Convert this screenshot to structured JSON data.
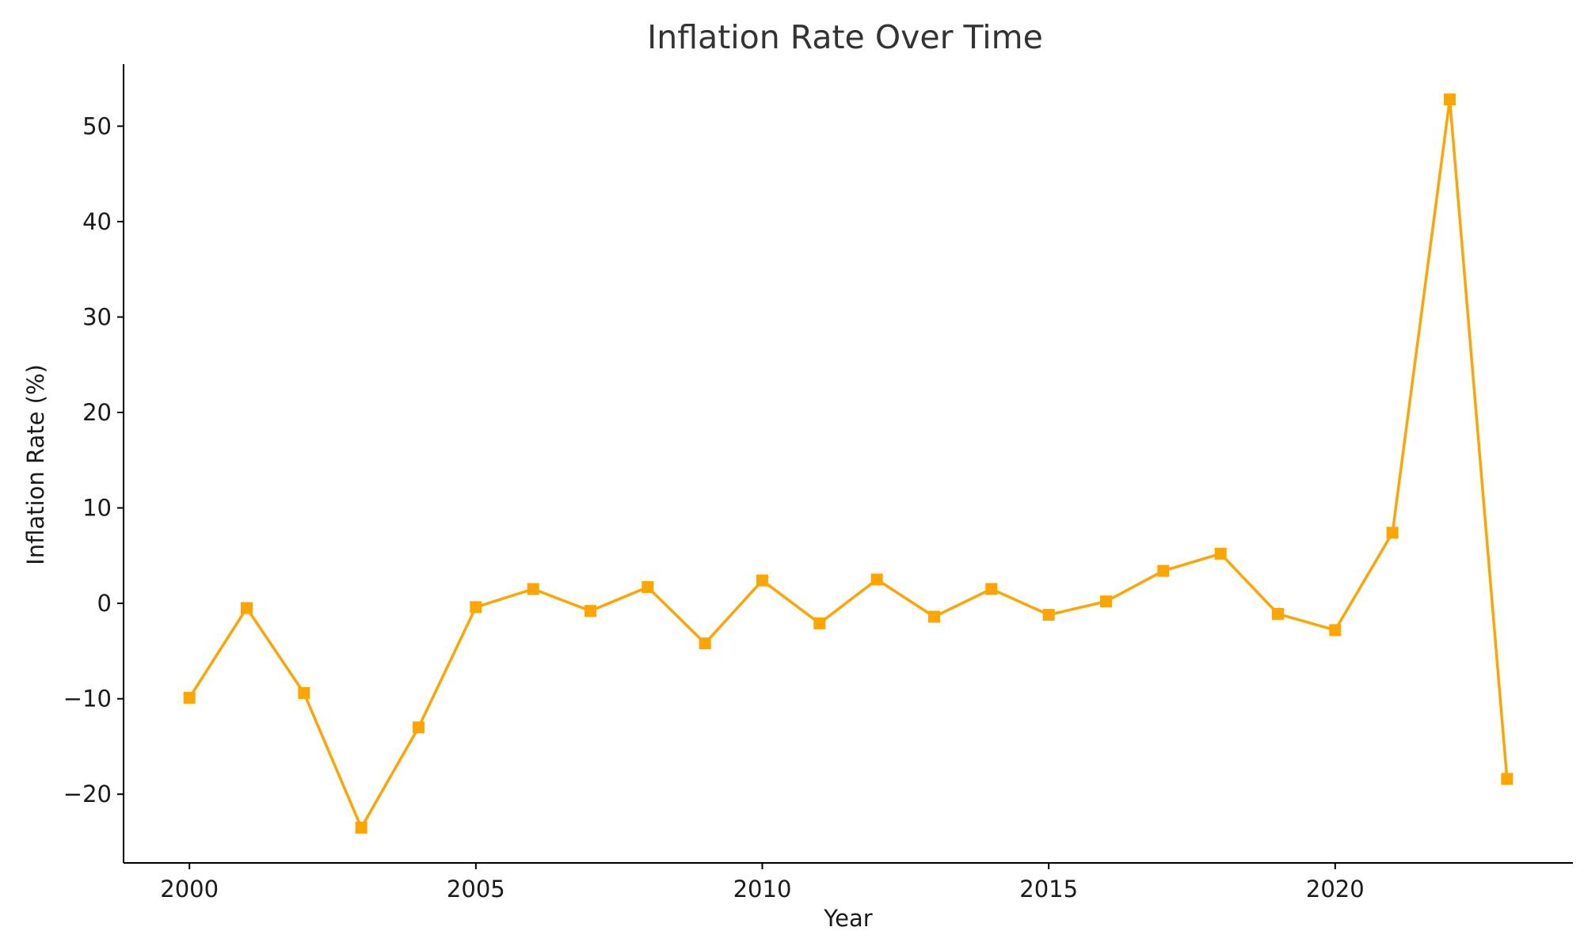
{
  "chart_data": {
    "type": "line",
    "title": "Inflation Rate Over Time",
    "xlabel": "Year",
    "ylabel": "Inflation Rate (%)",
    "xlim": [
      1998.85,
      2024.15
    ],
    "ylim": [
      -27.2,
      56.5
    ],
    "xticks": [
      2000,
      2005,
      2010,
      2015,
      2020
    ],
    "xtick_labels": [
      "2000",
      "2005",
      "2010",
      "2015",
      "2020"
    ],
    "yticks": [
      -20,
      -10,
      0,
      10,
      20,
      30,
      40,
      50
    ],
    "ytick_labels": [
      "−20",
      "−10",
      "0",
      "10",
      "20",
      "30",
      "40",
      "50"
    ],
    "grid": false,
    "color": "#FFA500",
    "marker": "square",
    "x": [
      2000,
      2001,
      2002,
      2003,
      2004,
      2005,
      2006,
      2007,
      2008,
      2009,
      2010,
      2011,
      2012,
      2013,
      2014,
      2015,
      2016,
      2017,
      2018,
      2019,
      2020,
      2021,
      2022,
      2023
    ],
    "y": [
      -9.9,
      -0.5,
      -9.4,
      -23.5,
      -13.0,
      -0.4,
      1.5,
      -0.8,
      1.7,
      -4.2,
      2.4,
      -2.1,
      2.5,
      -1.4,
      1.5,
      -1.2,
      0.2,
      3.4,
      5.2,
      -1.1,
      -2.8,
      7.4,
      52.8,
      -18.4
    ]
  }
}
